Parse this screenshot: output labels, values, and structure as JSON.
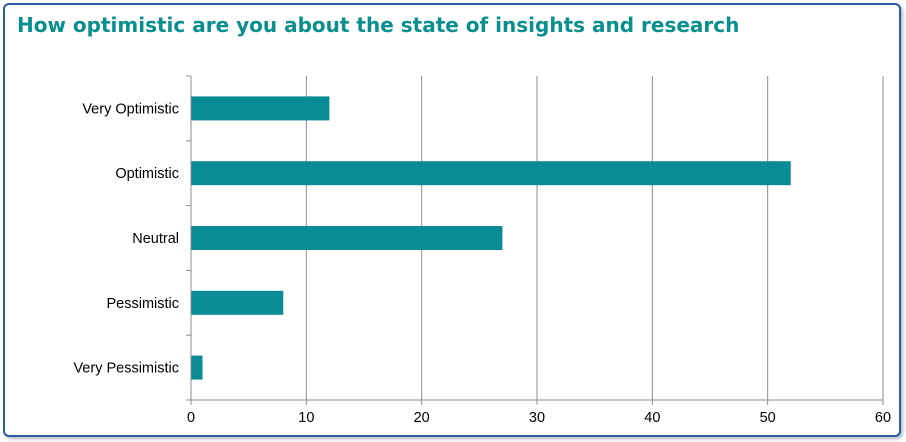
{
  "chart_data": {
    "type": "bar",
    "orientation": "horizontal",
    "title": "How optimistic are you about the state of insights and research",
    "categories": [
      "Very Optimistic",
      "Optimistic",
      "Neutral",
      "Pessimistic",
      "Very Pessimistic"
    ],
    "values": [
      12,
      52,
      27,
      8,
      1
    ],
    "xlim": [
      0,
      60
    ],
    "x_ticks": [
      "0",
      "10",
      "20",
      "30",
      "40",
      "50",
      "60"
    ],
    "grid": "vertical",
    "legend": "none",
    "colors": {
      "bar": "#0a8c96",
      "title": "#0a8f8f",
      "grid": "#8c8c8c",
      "frame": "#2a5d9a"
    }
  }
}
